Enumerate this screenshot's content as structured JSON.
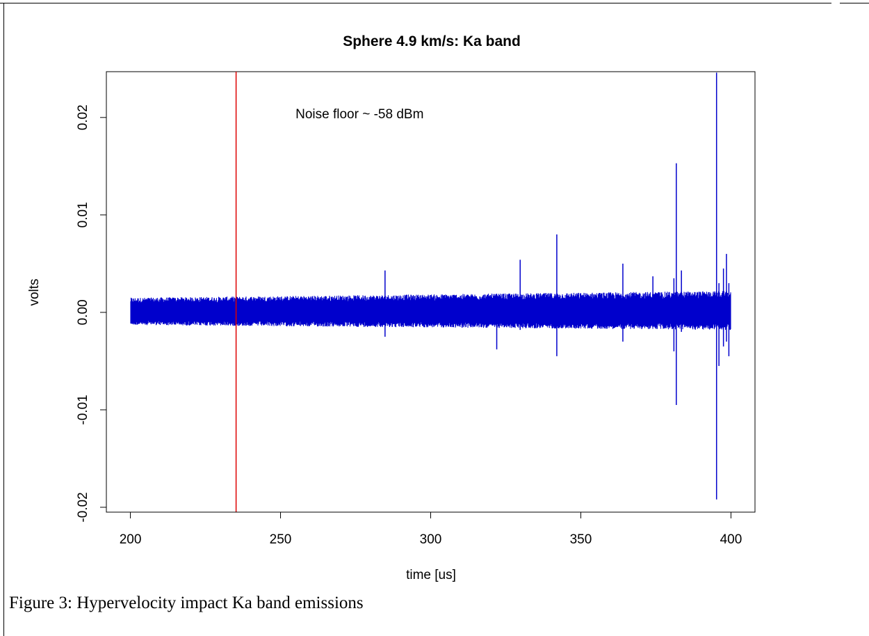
{
  "chart_data": {
    "type": "line",
    "title": "Sphere 4.9 km/s: Ka band",
    "xlabel": "time [us]",
    "ylabel": "volts",
    "xlim": [
      192,
      408
    ],
    "ylim": [
      -0.0205,
      0.0247
    ],
    "x_ticks": [
      200,
      250,
      300,
      350,
      400
    ],
    "x_tick_labels": [
      "200",
      "250",
      "300",
      "350",
      "400"
    ],
    "y_ticks": [
      -0.02,
      -0.01,
      0.0,
      0.01,
      0.02
    ],
    "y_tick_labels": [
      "-0.02",
      "-0.01",
      "0.00",
      "0.01",
      "0.02"
    ],
    "grid": false,
    "series": [
      {
        "color": "#0000cc",
        "x_range": [
          200,
          400
        ],
        "noise_band_start": [
          -0.0013,
          0.0015
        ],
        "noise_band_end": [
          -0.0018,
          0.0022
        ],
        "spikes": [
          {
            "x": 284.8,
            "min": -0.0025,
            "max": 0.0043
          },
          {
            "x": 322.0,
            "min": -0.0038,
            "max": 0.0019
          },
          {
            "x": 329.8,
            "min": -0.0018,
            "max": 0.0054
          },
          {
            "x": 342.0,
            "min": -0.0045,
            "max": 0.008
          },
          {
            "x": 364.0,
            "min": -0.003,
            "max": 0.005
          },
          {
            "x": 374.0,
            "min": -0.0015,
            "max": 0.0037
          },
          {
            "x": 381.0,
            "min": -0.004,
            "max": 0.0035
          },
          {
            "x": 381.8,
            "min": -0.0095,
            "max": 0.0153
          },
          {
            "x": 383.5,
            "min": -0.002,
            "max": 0.0043
          },
          {
            "x": 395.2,
            "min": -0.0192,
            "max": 0.0246
          },
          {
            "x": 396.0,
            "min": -0.0055,
            "max": 0.003
          },
          {
            "x": 397.5,
            "min": -0.0035,
            "max": 0.0045
          },
          {
            "x": 398.5,
            "min": -0.003,
            "max": 0.006
          },
          {
            "x": 399.3,
            "min": -0.0045,
            "max": 0.003
          }
        ]
      }
    ],
    "markers": [
      {
        "type": "vline",
        "x": 235.2,
        "color": "#dd0000"
      }
    ],
    "annotations": [
      {
        "text": "Noise floor ~ -58 dBm",
        "x": 255,
        "y": 0.0199
      }
    ]
  },
  "caption": "Figure 3: Hypervelocity impact Ka band emissions"
}
